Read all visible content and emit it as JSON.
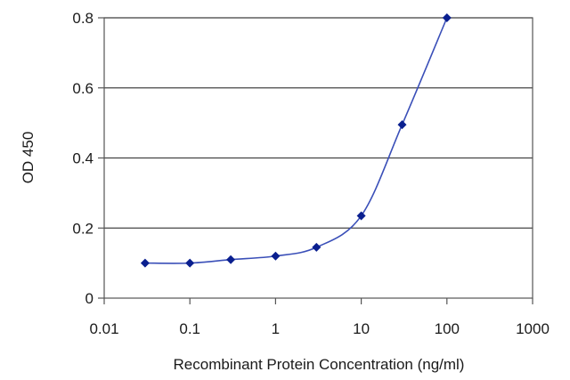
{
  "chart_data": {
    "type": "line",
    "title": "",
    "xlabel": "Recombinant Protein Concentration (ng/ml)",
    "ylabel": "OD 450",
    "x_scale": "log",
    "xlim": [
      0.01,
      1000
    ],
    "ylim": [
      0,
      0.8
    ],
    "x_ticks": [
      0.01,
      0.1,
      1,
      10,
      100,
      1000
    ],
    "x_tick_labels": [
      "0.01",
      "0.1",
      "1",
      "10",
      "100",
      "1000"
    ],
    "y_ticks": [
      0,
      0.2,
      0.4,
      0.6,
      0.8
    ],
    "y_tick_labels": [
      "0",
      "0.2",
      "0.4",
      "0.6",
      "0.8"
    ],
    "grid": "horizontal",
    "legend": "none",
    "series": [
      {
        "x": [
          0.03,
          0.1,
          0.3,
          1,
          3,
          10,
          30,
          100
        ],
        "y": [
          0.1,
          0.1,
          0.11,
          0.12,
          0.145,
          0.235,
          0.495,
          0.8
        ],
        "color": "#3a4fb8",
        "marker": "diamond",
        "marker_color": "#0a1f8f"
      }
    ]
  }
}
